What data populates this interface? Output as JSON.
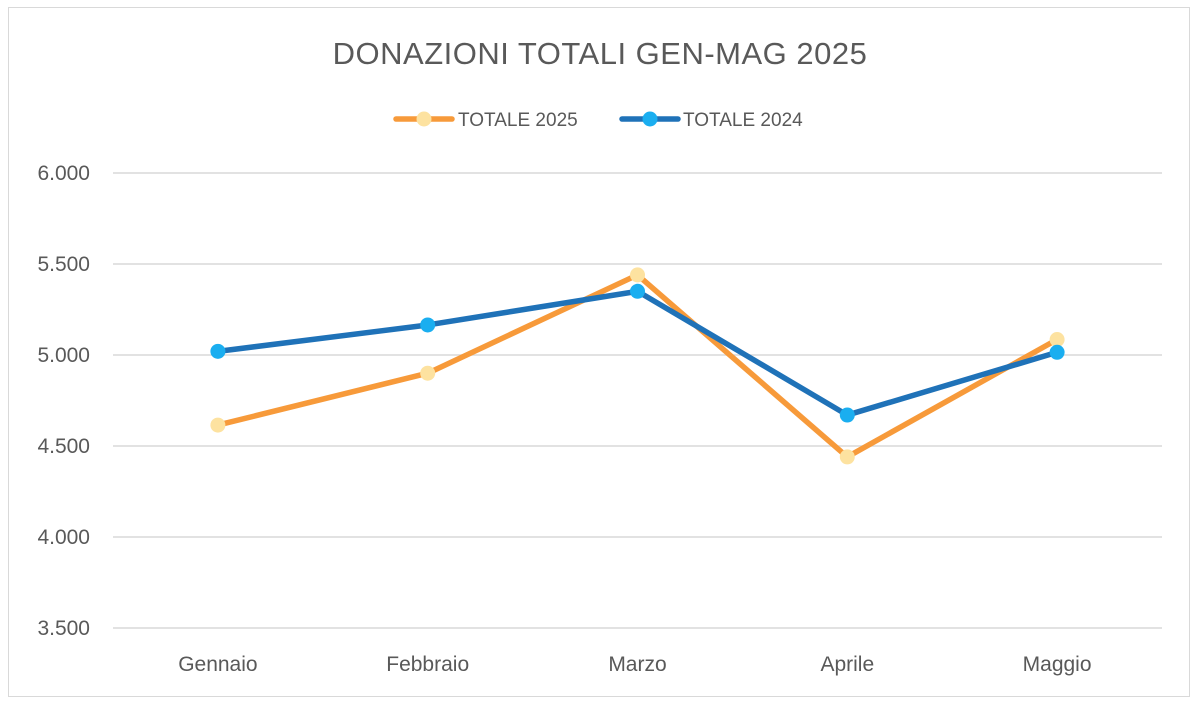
{
  "chart_data": {
    "type": "line",
    "title": "DONAZIONI TOTALI GEN-MAG 2025",
    "categories": [
      "Gennaio",
      "Febbraio",
      "Marzo",
      "Aprile",
      "Maggio"
    ],
    "series": [
      {
        "name": "TOTALE 2025",
        "values": [
          4615,
          4900,
          5440,
          4440,
          5085
        ],
        "line_color": "#f79a3a",
        "marker_color": "#fde2a0"
      },
      {
        "name": "TOTALE 2024",
        "values": [
          5020,
          5165,
          5350,
          4670,
          5015
        ],
        "line_color": "#1f72b8",
        "marker_color": "#1aaef0"
      }
    ],
    "ylim": [
      3500,
      6000
    ],
    "yticks": [
      "3.500",
      "4.000",
      "4.500",
      "5.000",
      "5.500",
      "6.000"
    ],
    "ytick_values": [
      3500,
      4000,
      4500,
      5000,
      5500,
      6000
    ],
    "legend_position": "top-center",
    "grid": true,
    "xlabel": "",
    "ylabel": ""
  }
}
